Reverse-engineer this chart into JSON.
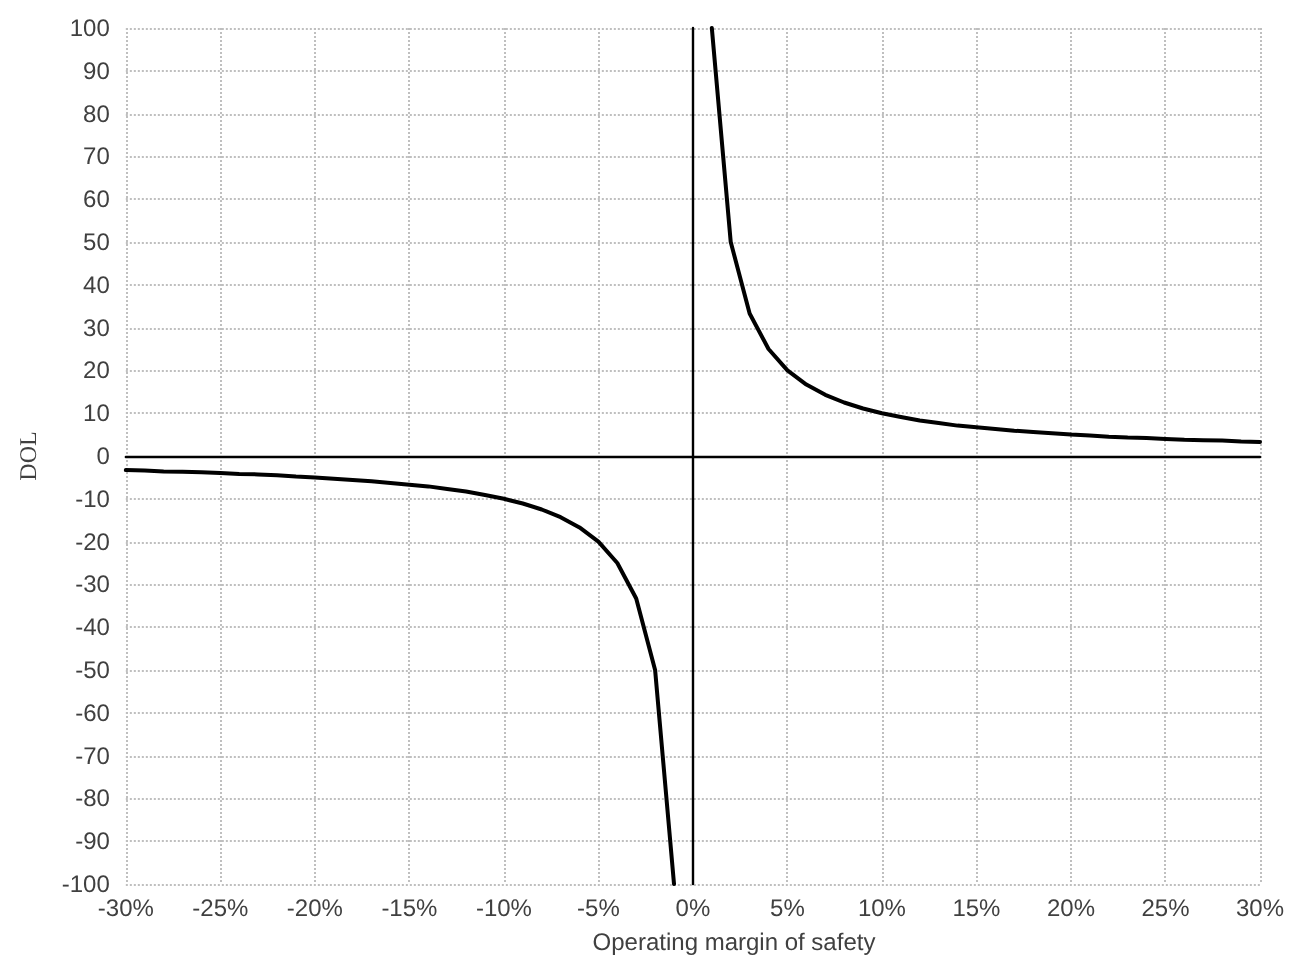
{
  "chart_data": {
    "type": "line",
    "xlabel": "Operating margin of safety",
    "ylabel": "DOL",
    "x": [
      -30,
      -29,
      -28,
      -27,
      -26,
      -25,
      -24,
      -23,
      -22,
      -21,
      -20,
      -19,
      -18,
      -17,
      -16,
      -15,
      -14,
      -13,
      -12,
      -11,
      -10,
      -9,
      -8,
      -7,
      -6,
      -5,
      -4,
      -3,
      -2,
      -1,
      0,
      1,
      2,
      3,
      4,
      5,
      6,
      7,
      8,
      9,
      10,
      11,
      12,
      13,
      14,
      15,
      16,
      17,
      18,
      19,
      20,
      21,
      22,
      23,
      24,
      25,
      26,
      27,
      28,
      29,
      30
    ],
    "series": [
      {
        "color": "#000000",
        "values": [
          -3.3,
          -3.4,
          -3.6,
          -3.7,
          -3.8,
          -4,
          -4.2,
          -4.3,
          -4.5,
          -4.8,
          -5,
          -5.3,
          -5.6,
          -5.9,
          -6.3,
          -6.7,
          -7.1,
          -7.7,
          -8.3,
          -9.1,
          -10,
          -11.1,
          -12.5,
          -14.3,
          -16.7,
          -20,
          -25,
          -33.3,
          -50,
          -100,
          null,
          100,
          50,
          33.3,
          25,
          20,
          16.7,
          14.3,
          12.5,
          11.1,
          10,
          9.1,
          8.3,
          7.7,
          7.1,
          6.7,
          6.3,
          5.9,
          5.6,
          5.3,
          5,
          4.8,
          4.5,
          4.3,
          4.2,
          4,
          3.8,
          3.7,
          3.6,
          3.4,
          3.3
        ]
      }
    ],
    "xlim": [
      -30,
      30
    ],
    "xticks": [
      {
        "value": -30,
        "label": "-30%"
      },
      {
        "value": -25,
        "label": "-25%"
      },
      {
        "value": -20,
        "label": "-20%"
      },
      {
        "value": -15,
        "label": "-15%"
      },
      {
        "value": -10,
        "label": "-10%"
      },
      {
        "value": -5,
        "label": "-5%"
      },
      {
        "value": 0,
        "label": "0%"
      },
      {
        "value": 5,
        "label": "5%"
      },
      {
        "value": 10,
        "label": "10%"
      },
      {
        "value": 15,
        "label": "15%"
      },
      {
        "value": 20,
        "label": "20%"
      },
      {
        "value": 25,
        "label": "25%"
      },
      {
        "value": 30,
        "label": "30%"
      }
    ],
    "ylim": [
      -100,
      100
    ],
    "yticks": [
      -100,
      -90,
      -80,
      -70,
      -60,
      -50,
      -40,
      -30,
      -20,
      -10,
      0,
      10,
      20,
      30,
      40,
      50,
      60,
      70,
      80,
      90,
      100
    ],
    "grid": true,
    "marker": "none",
    "line_style": "solid"
  }
}
